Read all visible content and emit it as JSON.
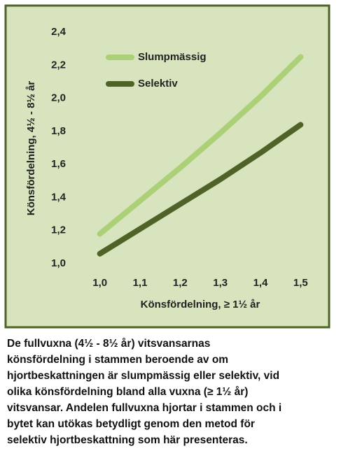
{
  "chart_data": {
    "type": "line",
    "x": [
      1.0,
      1.1,
      1.2,
      1.3,
      1.4,
      1.5
    ],
    "series": [
      {
        "name": "Slumpmässig",
        "color": "#acd078",
        "values": [
          1.18,
          1.38,
          1.58,
          1.79,
          2.01,
          2.25
        ]
      },
      {
        "name": "Selektiv",
        "color": "#4f6228",
        "values": [
          1.06,
          1.21,
          1.36,
          1.51,
          1.67,
          1.84
        ]
      }
    ],
    "xlabel": "Könsfördelning, ≥ 1½ år",
    "ylabel": "Könsfördelning, 4½ - 8½ år",
    "xlim": [
      0.95,
      1.55
    ],
    "ylim": [
      1.0,
      2.4
    ],
    "xticks": [
      {
        "value": 1.0,
        "label": "1,0"
      },
      {
        "value": 1.1,
        "label": "1,1"
      },
      {
        "value": 1.2,
        "label": "1,2"
      },
      {
        "value": 1.3,
        "label": "1,3"
      },
      {
        "value": 1.4,
        "label": "1,4"
      },
      {
        "value": 1.5,
        "label": "1,5"
      }
    ],
    "yticks": [
      {
        "value": 1.0,
        "label": "1,0"
      },
      {
        "value": 1.2,
        "label": "1,2"
      },
      {
        "value": 1.4,
        "label": "1,4"
      },
      {
        "value": 1.6,
        "label": "1,6"
      },
      {
        "value": 1.8,
        "label": "1,8"
      },
      {
        "value": 2.0,
        "label": "2,0"
      },
      {
        "value": 2.2,
        "label": "2,2"
      },
      {
        "value": 2.4,
        "label": "2,4"
      }
    ],
    "legend": "upper left"
  },
  "caption": [
    "De fullvuxna (4½ - 8½ år) vitsvansarnas",
    "könsfördelning i stammen beroende av om",
    "hjortbeskattningen är slumpmässig eller selektiv, vid",
    "olika könsfördelning bland alla vuxna (≥ 1½ år)",
    "vitsvansar. Andelen fullvuxna hjortar i stammen och i",
    "bytet kan utökas betydligt genom den metod för",
    "selektiv hjortbeskattning som här presenteras."
  ]
}
